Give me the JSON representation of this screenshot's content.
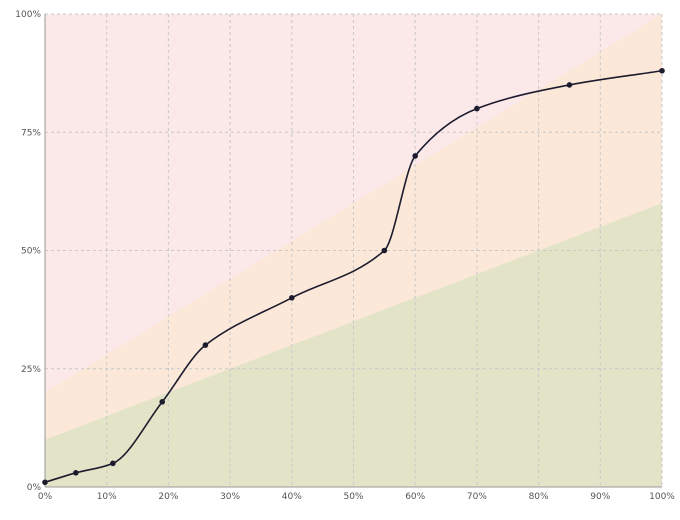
{
  "chart_data": {
    "type": "line",
    "title": "",
    "xlabel": "",
    "ylabel": "",
    "xlim": [
      0,
      100
    ],
    "ylim": [
      0,
      100
    ],
    "grid": true,
    "x_ticks": [
      "0%",
      "10%",
      "20%",
      "30%",
      "40%",
      "50%",
      "60%",
      "70%",
      "80%",
      "90%",
      "100%"
    ],
    "y_ticks": [
      "0%",
      "25%",
      "50%",
      "75%",
      "100%"
    ],
    "bands": [
      {
        "name": "red-zone",
        "color": "#fbe8e8",
        "lower_start": 0,
        "lower_end": 100,
        "upper_start": 100,
        "upper_end": 100
      },
      {
        "name": "orange-zone",
        "color": "#fbe8d8",
        "lower_start": 0,
        "lower_end": 0,
        "upper_start": 20,
        "upper_end": 100
      },
      {
        "name": "green-zone",
        "color": "#e3e3c8",
        "lower_start": 0,
        "lower_end": 0,
        "upper_start": 10,
        "upper_end": 60
      }
    ],
    "series": [
      {
        "color": "#1c1c2e",
        "x": [
          0,
          5,
          11,
          19,
          26,
          40,
          55,
          60,
          70,
          85,
          100
        ],
        "y": [
          1,
          3,
          5,
          18,
          30,
          40,
          50,
          70,
          80,
          85,
          88
        ]
      }
    ]
  }
}
